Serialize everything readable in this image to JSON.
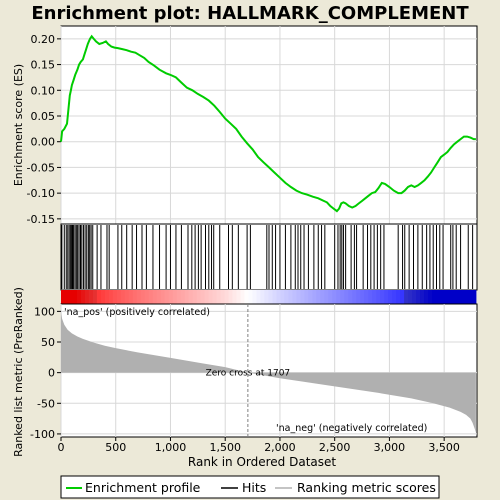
{
  "chart_data": {
    "type": "line",
    "title": "Enrichment plot: HALLMARK_COMPLEMENT",
    "xlabel": "Rank in Ordered Dataset",
    "x_ticks": [
      0,
      500,
      1000,
      1500,
      2000,
      2500,
      3000,
      3500
    ],
    "x_tick_labels": [
      "0",
      "500",
      "1,000",
      "1,500",
      "2,000",
      "2,500",
      "3,000",
      "3,500"
    ],
    "xlim": [
      0,
      3800
    ],
    "es_panel": {
      "ylabel": "Enrichment score (ES)",
      "ylim": [
        -0.16,
        0.225
      ],
      "y_ticks": [
        -0.15,
        -0.1,
        -0.05,
        0.0,
        0.05,
        0.1,
        0.15,
        0.2
      ],
      "y_tick_labels": [
        "-0.15",
        "-0.10",
        "-0.05",
        "0.00",
        "0.05",
        "0.10",
        "0.15",
        "0.20"
      ],
      "series": [
        {
          "name": "Enrichment profile",
          "color": "#00cc00",
          "x": [
            0,
            10,
            30,
            55,
            80,
            90,
            100,
            115,
            130,
            150,
            165,
            180,
            200,
            215,
            230,
            245,
            255,
            265,
            280,
            300,
            320,
            350,
            380,
            410,
            430,
            460,
            490,
            520,
            560,
            600,
            640,
            680,
            720,
            760,
            800,
            850,
            900,
            960,
            1000,
            1050,
            1100,
            1150,
            1200,
            1250,
            1300,
            1350,
            1400,
            1450,
            1500,
            1550,
            1600,
            1650,
            1700,
            1750,
            1800,
            1850,
            1900,
            1950,
            2000,
            2050,
            2100,
            2150,
            2200,
            2250,
            2300,
            2350,
            2400,
            2430,
            2460,
            2490,
            2520,
            2540,
            2560,
            2580,
            2600,
            2630,
            2660,
            2690,
            2720,
            2750,
            2780,
            2810,
            2840,
            2870,
            2900,
            2930,
            2960,
            3000,
            3040,
            3080,
            3110,
            3140,
            3170,
            3200,
            3230,
            3260,
            3290,
            3320,
            3350,
            3380,
            3410,
            3440,
            3470,
            3500,
            3530,
            3560,
            3590,
            3620,
            3650,
            3680,
            3710,
            3740,
            3770,
            3790
          ],
          "y": [
            0.0,
            0.02,
            0.025,
            0.035,
            0.09,
            0.1,
            0.11,
            0.12,
            0.13,
            0.14,
            0.15,
            0.155,
            0.16,
            0.17,
            0.18,
            0.19,
            0.195,
            0.2,
            0.205,
            0.2,
            0.195,
            0.19,
            0.192,
            0.195,
            0.19,
            0.185,
            0.183,
            0.182,
            0.18,
            0.178,
            0.175,
            0.173,
            0.168,
            0.163,
            0.155,
            0.148,
            0.14,
            0.133,
            0.13,
            0.125,
            0.115,
            0.105,
            0.1,
            0.093,
            0.087,
            0.08,
            0.07,
            0.058,
            0.045,
            0.035,
            0.025,
            0.01,
            -0.003,
            -0.015,
            -0.03,
            -0.04,
            -0.05,
            -0.06,
            -0.07,
            -0.08,
            -0.088,
            -0.095,
            -0.1,
            -0.103,
            -0.107,
            -0.11,
            -0.115,
            -0.118,
            -0.125,
            -0.13,
            -0.135,
            -0.13,
            -0.12,
            -0.118,
            -0.12,
            -0.125,
            -0.128,
            -0.125,
            -0.12,
            -0.115,
            -0.11,
            -0.105,
            -0.1,
            -0.098,
            -0.09,
            -0.08,
            -0.082,
            -0.088,
            -0.095,
            -0.1,
            -0.1,
            -0.095,
            -0.088,
            -0.085,
            -0.088,
            -0.085,
            -0.08,
            -0.075,
            -0.068,
            -0.06,
            -0.05,
            -0.04,
            -0.03,
            -0.025,
            -0.02,
            -0.012,
            -0.005,
            0.0,
            0.005,
            0.01,
            0.01,
            0.008,
            0.005,
            0.005
          ]
        }
      ]
    },
    "hits_panel": {
      "legend_label": "Hits",
      "hit_positions": [
        8,
        30,
        48,
        62,
        75,
        88,
        95,
        105,
        115,
        128,
        140,
        152,
        165,
        178,
        190,
        205,
        220,
        235,
        250,
        262,
        275,
        290,
        330,
        365,
        420,
        440,
        520,
        555,
        600,
        650,
        690,
        740,
        780,
        840,
        900,
        960,
        1000,
        1050,
        1100,
        1160,
        1195,
        1225,
        1255,
        1280,
        1320,
        1350,
        1375,
        1395,
        1450,
        1530,
        1565,
        1620,
        1700,
        1730,
        1880,
        1900,
        1930,
        1960,
        2000,
        2050,
        2100,
        2140,
        2165,
        2190,
        2220,
        2260,
        2310,
        2350,
        2380,
        2410,
        2500,
        2530,
        2550,
        2565,
        2580,
        2600,
        2650,
        2680,
        2700,
        2760,
        2800,
        2830,
        2860,
        2890,
        2920,
        2950,
        3080,
        3120,
        3140,
        3180,
        3220,
        3260,
        3300,
        3340,
        3370,
        3400,
        3430,
        3460,
        3490,
        3560,
        3580,
        3610,
        3650,
        3720,
        3760
      ]
    },
    "metric_panel": {
      "ylabel": "Ranked list metric (PreRanked)",
      "legend_label": "Ranking metric scores",
      "ylim": [
        -105,
        112
      ],
      "y_ticks": [
        -100,
        -50,
        0,
        50,
        100
      ],
      "y_tick_labels": [
        "-100",
        "-50",
        "0",
        "50",
        "100"
      ],
      "x": [
        0,
        10,
        30,
        60,
        100,
        150,
        200,
        300,
        400,
        500,
        700,
        1000,
        1300,
        1500,
        1707,
        2000,
        2300,
        2600,
        2900,
        3200,
        3400,
        3550,
        3650,
        3700,
        3740,
        3760,
        3780,
        3790
      ],
      "y": [
        100,
        88,
        78,
        70,
        64,
        59,
        55,
        49,
        44,
        40,
        33,
        24,
        15,
        9,
        0,
        -9,
        -17,
        -25,
        -33,
        -42,
        -50,
        -57,
        -64,
        -69,
        -75,
        -82,
        -92,
        -98
      ],
      "zero_cross_rank": 1707,
      "zero_cross_label": "Zero cross at 1707",
      "pos_label": "'na_pos' (positively correlated)",
      "neg_label": "'na_neg' (negatively correlated)"
    },
    "legend": {
      "entries": [
        "Enrichment profile",
        "Hits",
        "Ranking metric scores"
      ],
      "placement": "bottom"
    }
  },
  "colors": {
    "background": "#ece9d8",
    "plot_bg": "#ffffff",
    "profile": "#00cc00",
    "hits": "#000000",
    "metric_fill": "#b0b0b0",
    "pos_text": "#cc0000",
    "neg_text": "#0000cc",
    "zero_line": "#808080",
    "grid": "#d8d8d8"
  }
}
